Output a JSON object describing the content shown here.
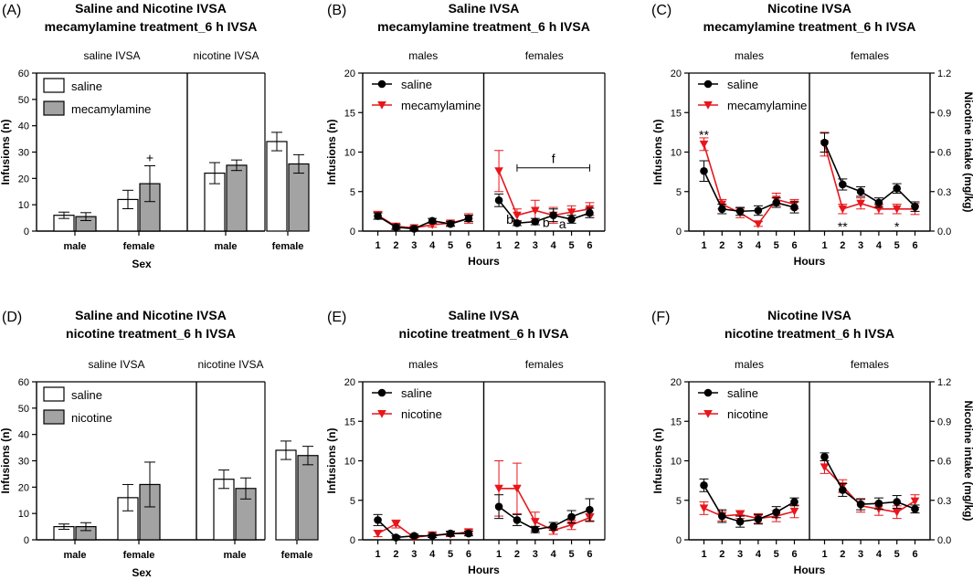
{
  "colors": {
    "saline": "#000000",
    "treatment": "#e8161b",
    "bar_saline": "#ffffff",
    "bar_treatment": "#a3a3a3"
  },
  "panels": [
    {
      "id": "A",
      "label": "(A)",
      "title1": "Saline and Nicotine IVSA",
      "title2": "mecamylamine treatment_6 h IVSA",
      "group_labels": [
        "saline IVSA",
        "nicotine IVSA"
      ],
      "legend": [
        "saline",
        "mecamylamine"
      ]
    },
    {
      "id": "B",
      "label": "(B)",
      "title1": "Saline IVSA",
      "title2": "mecamylamine treatment_6 h IVSA",
      "group_labels": [
        "males",
        "females"
      ],
      "legend": [
        "saline",
        "mecamylamine"
      ]
    },
    {
      "id": "C",
      "label": "(C)",
      "title1": "Nicotine IVSA",
      "title2": "mecamylamine treatment_6 h IVSA",
      "group_labels": [
        "males",
        "females"
      ],
      "legend": [
        "saline",
        "mecamylamine"
      ]
    },
    {
      "id": "D",
      "label": "(D)",
      "title1": "Saline and Nicotine IVSA",
      "title2": "nicotine treatment_6 h IVSA",
      "group_labels": [
        "saline IVSA",
        "nicotine IVSA"
      ],
      "legend": [
        "saline",
        "nicotine"
      ]
    },
    {
      "id": "E",
      "label": "(E)",
      "title1": "Saline IVSA",
      "title2": "nicotine treatment_6 h IVSA",
      "group_labels": [
        "males",
        "females"
      ],
      "legend": [
        "saline",
        "nicotine"
      ]
    },
    {
      "id": "F",
      "label": "(F)",
      "title1": "Nicotine IVSA",
      "title2": "nicotine treatment_6 h IVSA",
      "group_labels": [
        "males",
        "females"
      ],
      "legend": [
        "saline",
        "nicotine"
      ]
    }
  ],
  "chart_data": [
    {
      "panel": "A",
      "type": "bar",
      "categories": [
        "male",
        "female",
        "male",
        "female"
      ],
      "groups": [
        "saline IVSA",
        "saline IVSA",
        "nicotine IVSA",
        "nicotine IVSA"
      ],
      "series": [
        {
          "name": "saline",
          "values": [
            6,
            12,
            22,
            34
          ],
          "errors": [
            1.2,
            3.5,
            4,
            3.5
          ]
        },
        {
          "name": "mecamylamine",
          "values": [
            5.5,
            18,
            25,
            25.5
          ],
          "errors": [
            1.5,
            6.8,
            2,
            3.5
          ]
        }
      ],
      "ylabel": "Infusions (n)",
      "xlabel": "Sex",
      "ylim": [
        0,
        60
      ],
      "yticks": [
        0,
        10,
        20,
        30,
        40,
        50,
        60
      ],
      "annotations": [
        {
          "text": "+",
          "category": 1,
          "series": "mecamylamine"
        }
      ]
    },
    {
      "panel": "B",
      "type": "line",
      "x": [
        1,
        2,
        3,
        4,
        5,
        6
      ],
      "xlabel": "Hours",
      "ylabel": "Infusions (n)",
      "ylim": [
        0,
        20
      ],
      "yticks": [
        0,
        5,
        10,
        15,
        20
      ],
      "groups": [
        "males",
        "females"
      ],
      "series": [
        {
          "name": "saline",
          "group": "males",
          "values": [
            1.9,
            0.5,
            0.3,
            1.3,
            0.9,
            1.6
          ],
          "errors": [
            0.4,
            0.3,
            0.2,
            0.3,
            0.3,
            0.4
          ]
        },
        {
          "name": "mecamylamine",
          "group": "males",
          "values": [
            2,
            0.6,
            0.4,
            0.8,
            1.0,
            1.6
          ],
          "errors": [
            0.5,
            0.3,
            0.2,
            0.3,
            0.3,
            0.6
          ]
        },
        {
          "name": "saline",
          "group": "females",
          "values": [
            3.9,
            1.0,
            1.2,
            2.0,
            1.5,
            2.3
          ],
          "errors": [
            0.8,
            0.3,
            0.4,
            0.8,
            0.5,
            0.6
          ]
        },
        {
          "name": "mecamylamine",
          "group": "females",
          "values": [
            7.6,
            2.0,
            2.6,
            2.0,
            2.4,
            2.8
          ],
          "errors": [
            2.6,
            0.8,
            1.3,
            1.0,
            0.8,
            0.8
          ]
        }
      ],
      "annotations": [
        {
          "text": "f",
          "group": "females",
          "x": 4,
          "y": 9.2
        },
        {
          "text": "b",
          "group": "females",
          "x": 1.6,
          "y": 1.5
        },
        {
          "text": "b",
          "group": "females",
          "x": 3.6,
          "y": 1.1
        },
        {
          "text": "a",
          "group": "females",
          "x": 4.5,
          "y": 0.9
        }
      ],
      "bracket": {
        "group": "females",
        "x_from": 2,
        "x_to": 6,
        "y": 8
      }
    },
    {
      "panel": "C",
      "type": "line",
      "x": [
        1,
        2,
        3,
        4,
        5,
        6
      ],
      "xlabel": "Hours",
      "ylabel": "Infusions (n)",
      "ylim": [
        0,
        20
      ],
      "yticks": [
        0,
        5,
        10,
        15,
        20
      ],
      "y2label": "Nicotine intake (mg/kg)",
      "y2lim": [
        0,
        1.2
      ],
      "y2ticks": [
        "0.0",
        "0.3",
        "0.6",
        "0.9",
        "1.2"
      ],
      "groups": [
        "males",
        "females"
      ],
      "series": [
        {
          "name": "saline",
          "group": "males",
          "values": [
            7.6,
            2.8,
            2.5,
            2.6,
            3.6,
            3.0
          ],
          "errors": [
            1.3,
            0.6,
            0.5,
            0.6,
            0.6,
            0.7
          ]
        },
        {
          "name": "mecamylamine",
          "group": "males",
          "values": [
            11.0,
            3.4,
            2.3,
            0.9,
            4.0,
            3.4
          ],
          "errors": [
            0.8,
            0.6,
            0.6,
            0.3,
            0.8,
            0.6
          ]
        },
        {
          "name": "saline",
          "group": "females",
          "values": [
            11.2,
            5.9,
            5.0,
            3.6,
            5.4,
            3.1
          ],
          "errors": [
            1.2,
            0.7,
            0.6,
            0.6,
            0.6,
            0.6
          ]
        },
        {
          "name": "mecamylamine",
          "group": "females",
          "values": [
            11.0,
            2.8,
            3.5,
            2.8,
            2.8,
            2.8
          ],
          "errors": [
            1.5,
            0.6,
            0.7,
            0.6,
            0.6,
            0.7
          ]
        }
      ],
      "annotations": [
        {
          "text": "**",
          "group": "males",
          "x": 1,
          "y": 12.2
        },
        {
          "text": "**",
          "group": "females",
          "x": 2,
          "y": 0.6
        },
        {
          "text": "*",
          "group": "females",
          "x": 5,
          "y": 0.6
        }
      ]
    },
    {
      "panel": "D",
      "type": "bar",
      "categories": [
        "male",
        "female",
        "male",
        "female"
      ],
      "groups": [
        "saline IVSA",
        "saline IVSA",
        "nicotine IVSA",
        "nicotine IVSA"
      ],
      "series": [
        {
          "name": "saline",
          "values": [
            5,
            16,
            23,
            34
          ],
          "errors": [
            1,
            5,
            3.5,
            3.5
          ]
        },
        {
          "name": "nicotine",
          "values": [
            5,
            21,
            19.5,
            32
          ],
          "errors": [
            1.5,
            8.5,
            4,
            3.5
          ]
        }
      ],
      "ylabel": "Infusions (n)",
      "xlabel": "Sex",
      "ylim": [
        0,
        60
      ],
      "yticks": [
        0,
        10,
        20,
        30,
        40,
        50,
        60
      ]
    },
    {
      "panel": "E",
      "type": "line",
      "x": [
        1,
        2,
        3,
        4,
        5,
        6
      ],
      "xlabel": "Hours",
      "ylabel": "Infusions (n)",
      "ylim": [
        0,
        20
      ],
      "yticks": [
        0,
        5,
        10,
        15,
        20
      ],
      "groups": [
        "males",
        "females"
      ],
      "series": [
        {
          "name": "saline",
          "group": "males",
          "values": [
            2.5,
            0.3,
            0.5,
            0.5,
            0.8,
            0.8
          ],
          "errors": [
            0.7,
            0.2,
            0.2,
            0.2,
            0.3,
            0.3
          ]
        },
        {
          "name": "nicotine",
          "group": "males",
          "values": [
            0.8,
            2.0,
            0.3,
            0.6,
            0.7,
            1.0
          ],
          "errors": [
            0.4,
            0.5,
            0.2,
            0.3,
            0.3,
            0.3
          ]
        },
        {
          "name": "saline",
          "group": "females",
          "values": [
            4.2,
            2.5,
            1.3,
            1.7,
            2.9,
            3.8
          ],
          "errors": [
            1.5,
            0.7,
            0.4,
            0.5,
            0.8,
            1.4
          ]
        },
        {
          "name": "nicotine",
          "group": "females",
          "values": [
            6.5,
            6.5,
            2.3,
            1.2,
            1.9,
            2.8
          ],
          "errors": [
            3.5,
            3.2,
            1.2,
            0.5,
            0.6,
            0.5
          ]
        }
      ]
    },
    {
      "panel": "F",
      "type": "line",
      "x": [
        1,
        2,
        3,
        4,
        5,
        6
      ],
      "xlabel": "Hours",
      "ylabel": "Infusions (n)",
      "ylim": [
        0,
        20
      ],
      "yticks": [
        0,
        5,
        10,
        15,
        20
      ],
      "y2label": "Nicotine intake (mg/kg)",
      "y2lim": [
        0,
        1.2
      ],
      "y2ticks": [
        "0.0",
        "0.3",
        "0.6",
        "0.9",
        "1.2"
      ],
      "groups": [
        "males",
        "females"
      ],
      "series": [
        {
          "name": "saline",
          "group": "males",
          "values": [
            6.9,
            3.0,
            2.3,
            2.6,
            3.5,
            4.8
          ],
          "errors": [
            0.8,
            0.8,
            0.7,
            0.6,
            0.7,
            0.5
          ]
        },
        {
          "name": "nicotine",
          "group": "males",
          "values": [
            4.0,
            3.0,
            3.2,
            2.7,
            3.0,
            3.6
          ],
          "errors": [
            0.8,
            0.6,
            0.5,
            0.6,
            0.7,
            0.8
          ]
        },
        {
          "name": "saline",
          "group": "females",
          "values": [
            10.5,
            6.3,
            4.5,
            4.6,
            4.8,
            3.9
          ],
          "errors": [
            0.5,
            0.8,
            0.7,
            0.7,
            0.8,
            0.5
          ]
        },
        {
          "name": "nicotine",
          "group": "females",
          "values": [
            9.2,
            6.8,
            4.3,
            3.9,
            3.5,
            4.9
          ],
          "errors": [
            0.8,
            0.8,
            0.8,
            0.8,
            0.8,
            0.8
          ]
        }
      ]
    }
  ]
}
